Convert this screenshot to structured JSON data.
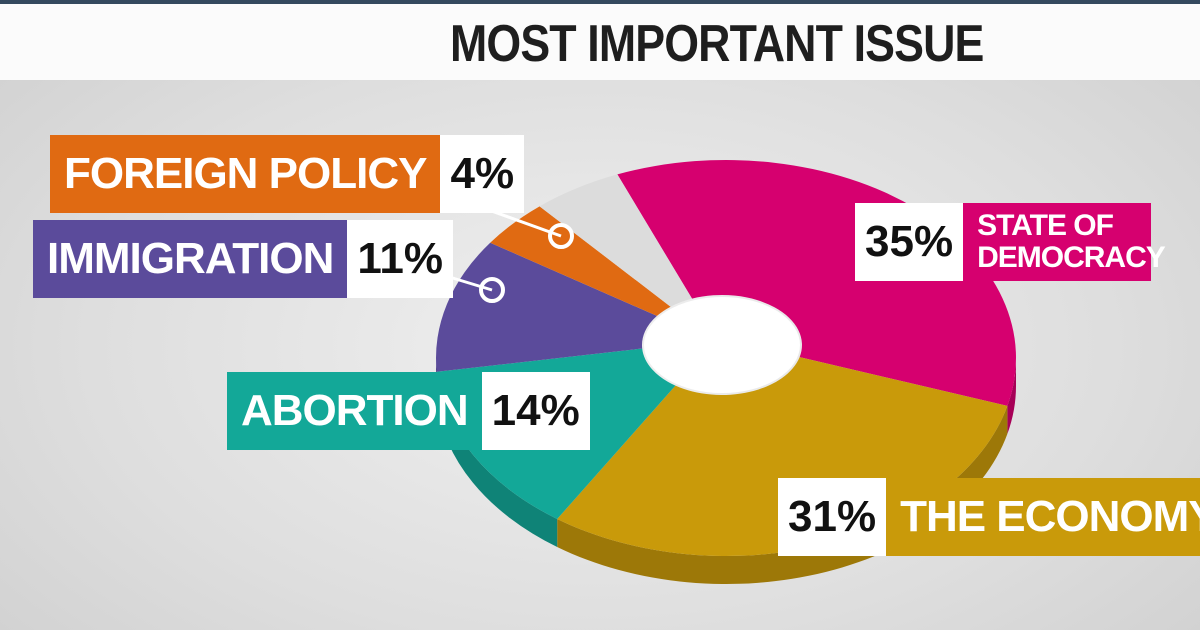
{
  "chart_data": {
    "type": "pie",
    "title": "MOST IMPORTANT ISSUE",
    "categories": [
      "STATE OF DEMOCRACY",
      "THE ECONOMY",
      "ABORTION",
      "IMMIGRATION",
      "FOREIGN POLICY",
      null
    ],
    "values": [
      35,
      31,
      14,
      11,
      4,
      5
    ],
    "value_labels": [
      "35%",
      "31%",
      "14%",
      "11%",
      "4%",
      null
    ],
    "colors": [
      "#d6006f",
      "#c99a0a",
      "#13a898",
      "#5b4b9b",
      "#e06a12",
      "#dcdcdc"
    ]
  }
}
